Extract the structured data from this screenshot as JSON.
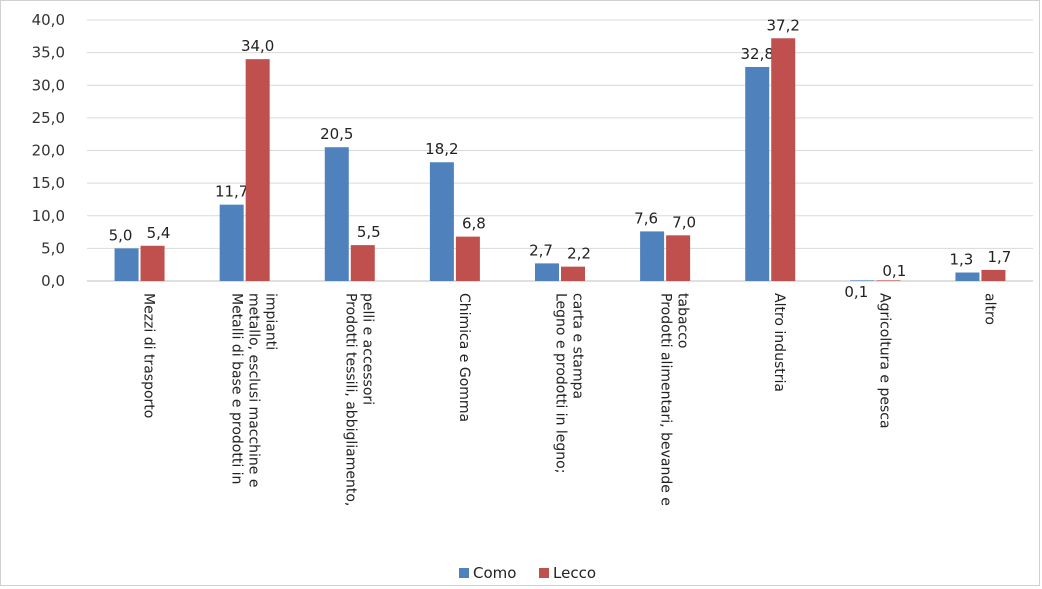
{
  "chart_data": {
    "type": "bar",
    "categories": [
      [
        "Mezzi di trasporto"
      ],
      [
        "Metalli di base e prodotti in",
        "metallo, esclusi macchine e",
        "impianti"
      ],
      [
        "Prodotti tessili, abbigliamento,",
        "pelli e accessori"
      ],
      [
        "Chimica e Gomma"
      ],
      [
        "Legno e prodotti in legno;",
        "carta e stampa"
      ],
      [
        "Prodotti alimentari, bevande e",
        "tabacco"
      ],
      [
        "Altro industria"
      ],
      [
        "Agricoltura e pesca"
      ],
      [
        "altro"
      ]
    ],
    "series": [
      {
        "name": "Como",
        "color": "#4f81bd",
        "values": [
          5.0,
          11.7,
          20.5,
          18.2,
          2.7,
          7.6,
          32.8,
          0.1,
          1.3
        ],
        "labels": [
          "5,0",
          "11,7",
          "20,5",
          "18,2",
          "2,7",
          "7,6",
          "32,8",
          "0,1",
          "1,3"
        ]
      },
      {
        "name": "Lecco",
        "color": "#c0504d",
        "values": [
          5.4,
          34.0,
          5.5,
          6.8,
          2.2,
          7.0,
          37.2,
          0.1,
          1.7
        ],
        "labels": [
          "5,4",
          "34,0",
          "5,5",
          "6,8",
          "2,2",
          "7,0",
          "37,2",
          "0,1",
          "1,7"
        ]
      }
    ],
    "ylim": [
      0,
      40
    ],
    "yticks": [
      0,
      5,
      10,
      15,
      20,
      25,
      30,
      35,
      40
    ],
    "ytick_labels": [
      "0,0",
      "5,0",
      "10,0",
      "15,0",
      "20,0",
      "25,0",
      "30,0",
      "35,0",
      "40,0"
    ],
    "grid": true,
    "legend": "bottom"
  }
}
